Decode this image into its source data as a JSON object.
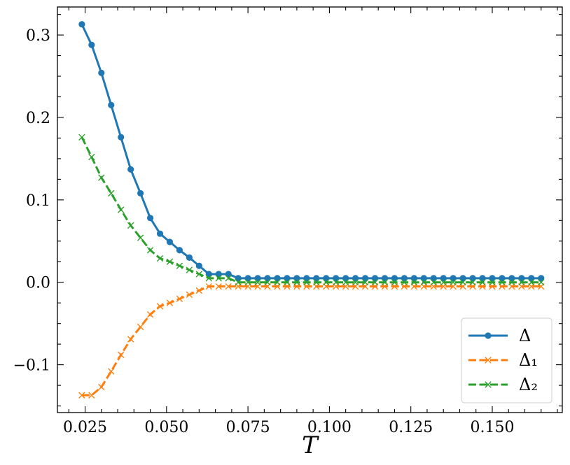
{
  "chart_data": {
    "type": "line",
    "title": "",
    "xlabel": "T",
    "ylabel": "",
    "xlim": [
      0.0165,
      0.1715
    ],
    "ylim": [
      -0.158,
      0.334
    ],
    "x_ticks": [
      0.025,
      0.05,
      0.075,
      0.1,
      0.125,
      0.15
    ],
    "x_tick_labels": [
      "0.025",
      "0.050",
      "0.075",
      "0.100",
      "0.125",
      "0.150"
    ],
    "y_ticks": [
      -0.1,
      0.0,
      0.1,
      0.2,
      0.3
    ],
    "y_tick_labels": [
      "−0.1",
      "0.0",
      "0.1",
      "0.2",
      "0.3"
    ],
    "grid": false,
    "legend_position": "lower-right",
    "x": [
      0.024,
      0.027,
      0.03,
      0.033,
      0.036,
      0.039,
      0.042,
      0.045,
      0.048,
      0.051,
      0.054,
      0.057,
      0.06,
      0.063,
      0.066,
      0.069,
      0.072,
      0.075,
      0.078,
      0.081,
      0.084,
      0.087,
      0.09,
      0.093,
      0.096,
      0.099,
      0.102,
      0.105,
      0.108,
      0.111,
      0.114,
      0.117,
      0.12,
      0.123,
      0.126,
      0.129,
      0.132,
      0.135,
      0.138,
      0.141,
      0.144,
      0.147,
      0.15,
      0.153,
      0.156,
      0.159,
      0.162,
      0.165
    ],
    "series": [
      {
        "name": "Δ",
        "color": "#1f77b4",
        "marker": "circle",
        "line_style": "solid",
        "values": [
          0.313,
          0.288,
          0.254,
          0.215,
          0.176,
          0.137,
          0.108,
          0.078,
          0.059,
          0.049,
          0.039,
          0.03,
          0.02,
          0.01,
          0.01,
          0.01,
          0.005,
          0.005,
          0.005,
          0.005,
          0.005,
          0.005,
          0.005,
          0.005,
          0.005,
          0.005,
          0.005,
          0.005,
          0.005,
          0.005,
          0.005,
          0.005,
          0.005,
          0.005,
          0.005,
          0.005,
          0.005,
          0.005,
          0.005,
          0.005,
          0.005,
          0.005,
          0.005,
          0.005,
          0.005,
          0.005,
          0.005,
          0.005
        ]
      },
      {
        "name": "Δ₁",
        "color": "#ff7f0e",
        "marker": "x",
        "line_style": "dashed",
        "values": [
          -0.137,
          -0.137,
          -0.127,
          -0.108,
          -0.088,
          -0.069,
          -0.054,
          -0.039,
          -0.029,
          -0.025,
          -0.02,
          -0.015,
          -0.01,
          -0.005,
          -0.005,
          -0.005,
          -0.005,
          -0.005,
          -0.005,
          -0.005,
          -0.005,
          -0.005,
          -0.005,
          -0.005,
          -0.005,
          -0.005,
          -0.005,
          -0.005,
          -0.005,
          -0.005,
          -0.005,
          -0.005,
          -0.005,
          -0.005,
          -0.005,
          -0.005,
          -0.005,
          -0.005,
          -0.005,
          -0.005,
          -0.005,
          -0.005,
          -0.005,
          -0.005,
          -0.005,
          -0.005,
          -0.005,
          -0.005
        ]
      },
      {
        "name": "Δ₂",
        "color": "#2ca02c",
        "marker": "x",
        "line_style": "dashed",
        "values": [
          0.176,
          0.152,
          0.127,
          0.108,
          0.088,
          0.069,
          0.054,
          0.039,
          0.029,
          0.025,
          0.02,
          0.015,
          0.01,
          0.005,
          0.005,
          0.005,
          0.0,
          0.0,
          0.0,
          0.0,
          0.0,
          0.0,
          0.0,
          0.0,
          0.0,
          0.0,
          0.0,
          0.0,
          0.0,
          0.0,
          0.0,
          0.0,
          0.0,
          0.0,
          0.0,
          0.0,
          0.0,
          0.0,
          0.0,
          0.0,
          0.0,
          0.0,
          0.0,
          0.0,
          0.0,
          0.0,
          0.0,
          0.0
        ]
      }
    ]
  }
}
